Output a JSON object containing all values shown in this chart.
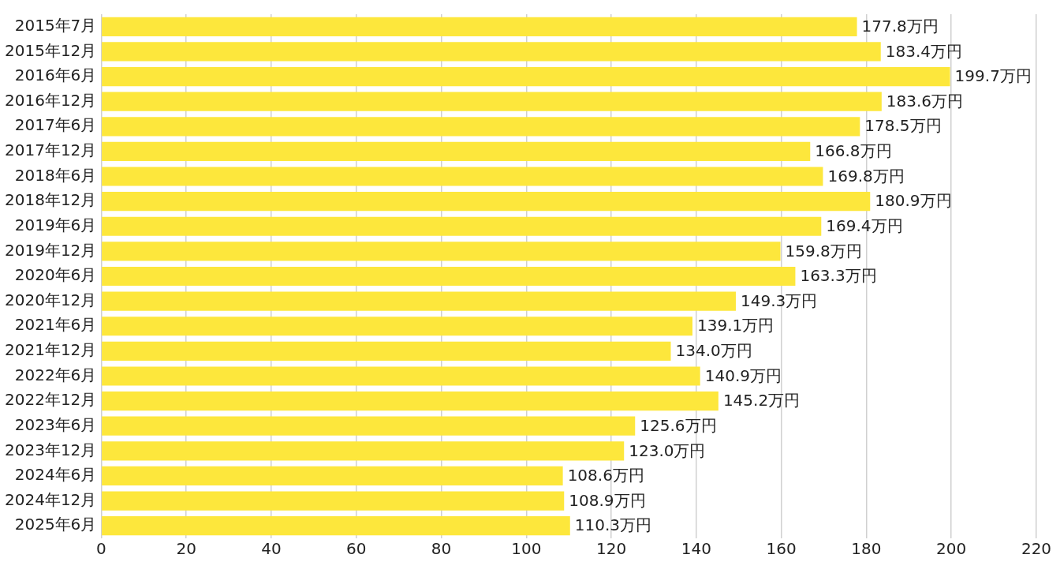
{
  "chart_data": {
    "type": "bar",
    "orientation": "horizontal",
    "categories": [
      "2015年7月",
      "2015年12月",
      "2016年6月",
      "2016年12月",
      "2017年6月",
      "2017年12月",
      "2018年6月",
      "2018年12月",
      "2019年6月",
      "2019年12月",
      "2020年6月",
      "2020年12月",
      "2021年6月",
      "2021年12月",
      "2022年6月",
      "2022年12月",
      "2023年6月",
      "2023年12月",
      "2024年6月",
      "2024年12月",
      "2025年6月"
    ],
    "values": [
      177.8,
      183.4,
      199.7,
      183.6,
      178.5,
      166.8,
      169.8,
      180.9,
      169.4,
      159.8,
      163.3,
      149.3,
      139.1,
      134.0,
      140.9,
      145.2,
      125.6,
      123.0,
      108.6,
      108.9,
      110.3
    ],
    "value_labels": [
      "177.8万円",
      "183.4万円",
      "199.7万円",
      "183.6万円",
      "178.5万円",
      "166.8万円",
      "169.8万円",
      "180.9万円",
      "169.4万円",
      "159.8万円",
      "163.3万円",
      "149.3万円",
      "139.1万円",
      "134.0万円",
      "140.9万円",
      "145.2万円",
      "125.6万円",
      "123.0万円",
      "108.6万円",
      "108.9万円",
      "110.3万円"
    ],
    "color": "#fde73c",
    "xlim": [
      0,
      220
    ],
    "xticks": [
      0,
      20,
      40,
      60,
      80,
      100,
      120,
      140,
      160,
      180,
      200,
      220
    ],
    "grid": "x"
  }
}
